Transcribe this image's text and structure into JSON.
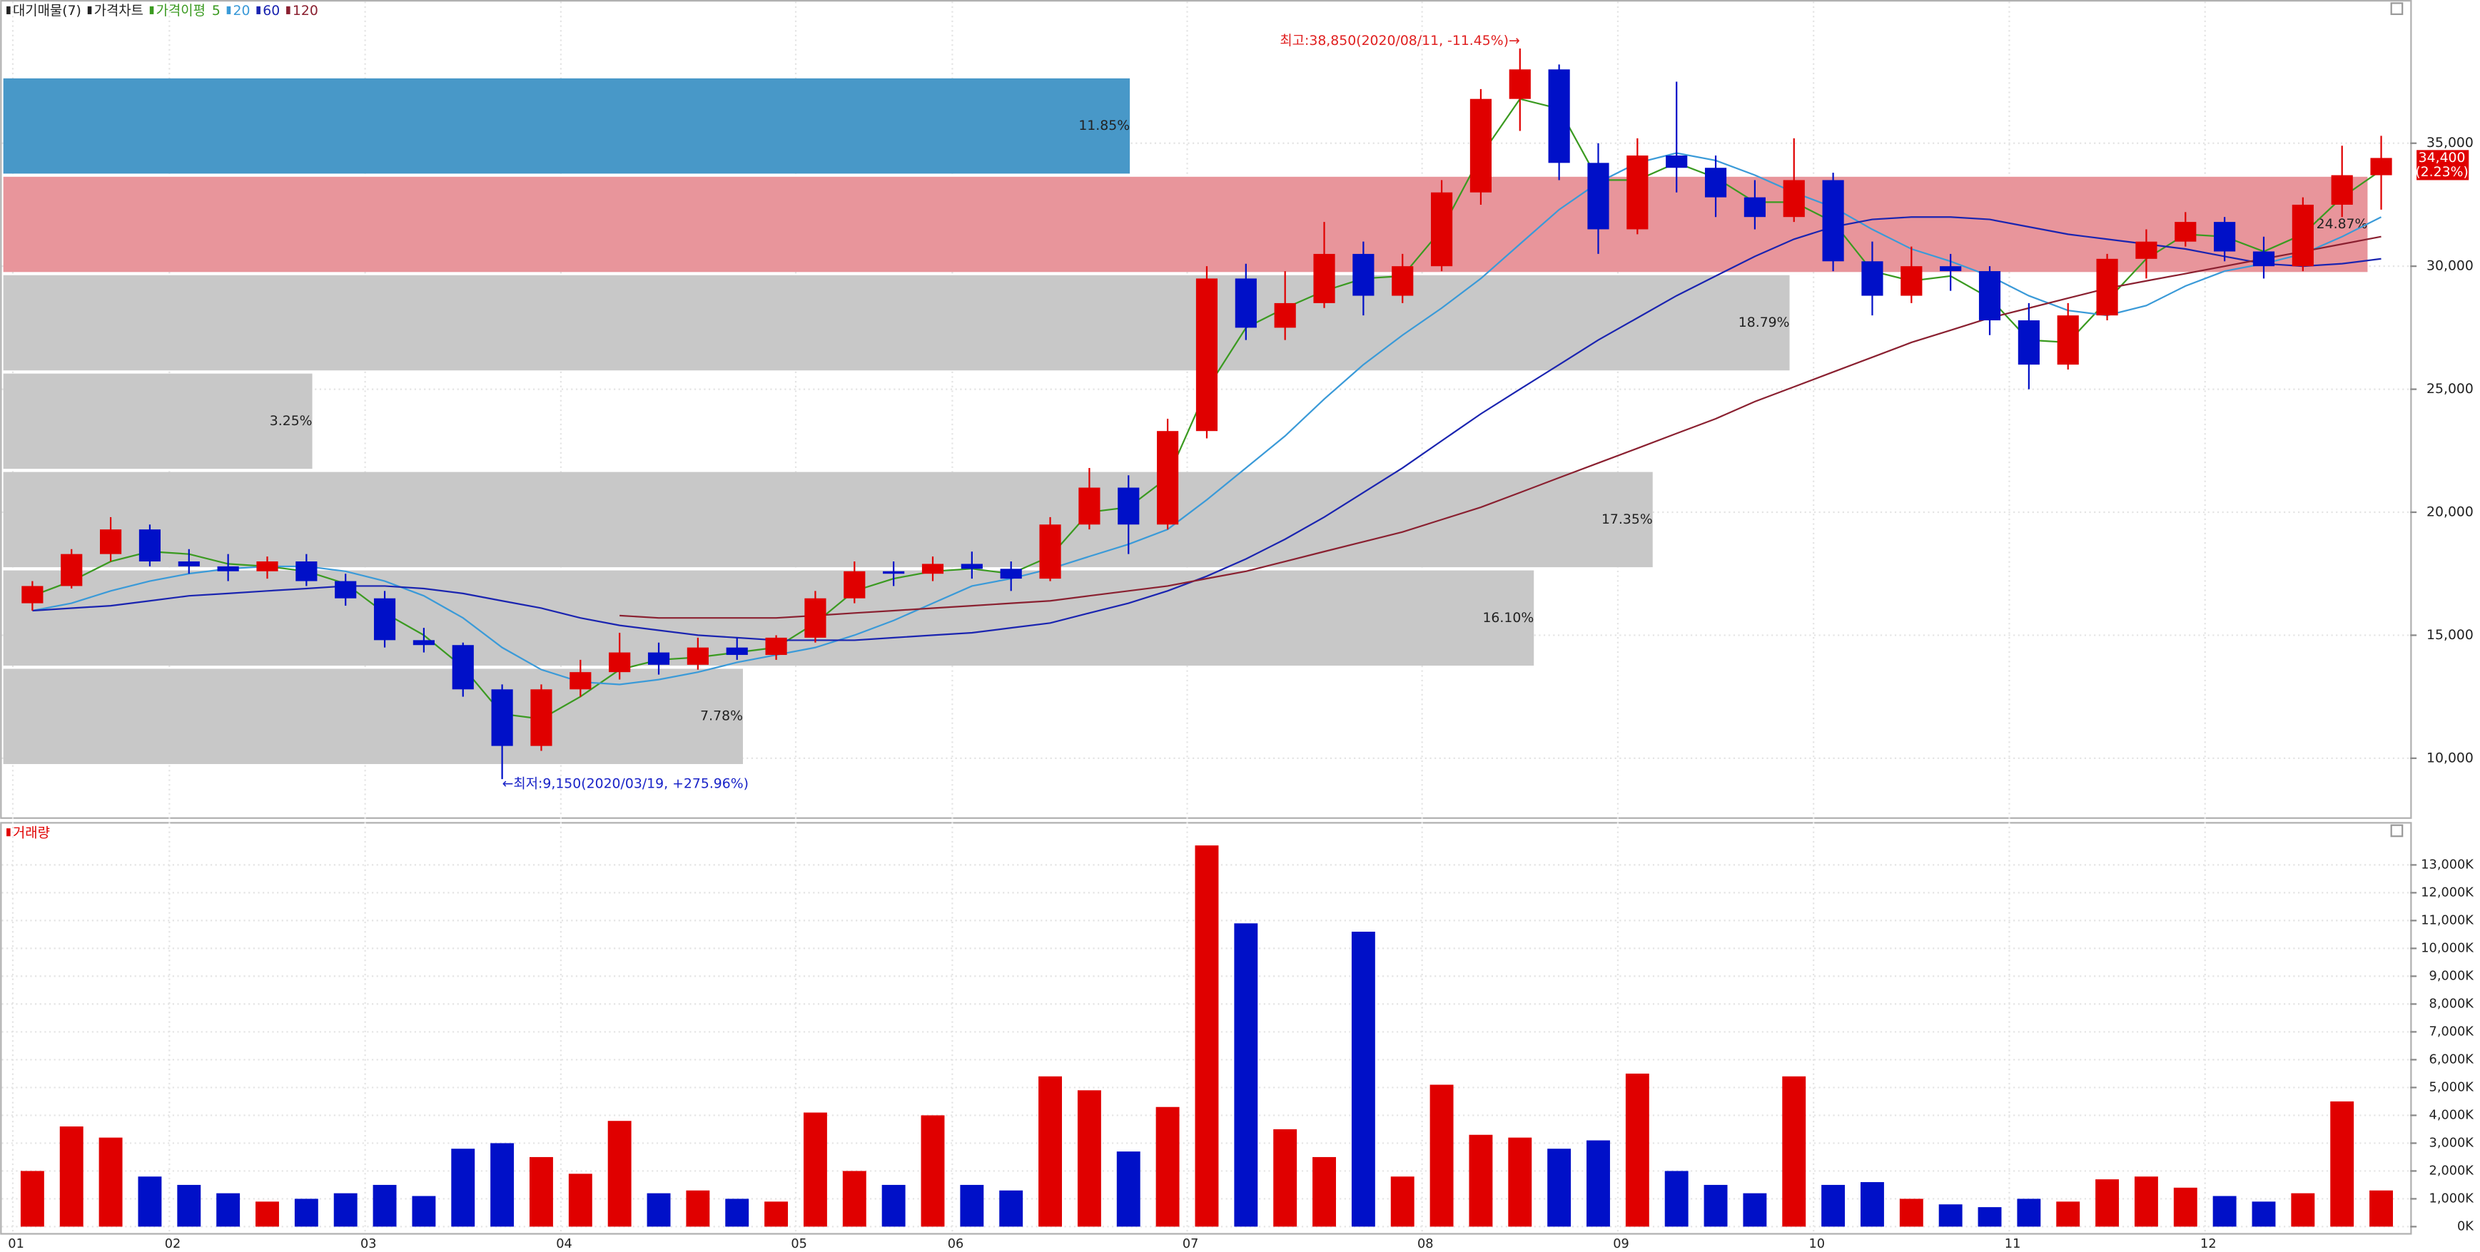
{
  "chart_data": [
    {
      "type": "candlestick",
      "legend_label": "가격차트",
      "ma_label": "가격이평",
      "up_color": "#e00000",
      "down_color": "#0010c8",
      "open": [
        16300,
        17000,
        18300,
        19300,
        18000,
        17800,
        17600,
        18000,
        17200,
        16500,
        14800,
        14600,
        12800,
        10500,
        12800,
        13500,
        14300,
        13800,
        14500,
        14200,
        14900,
        16500,
        17600,
        17500,
        17900,
        17700,
        17300,
        19500,
        21000,
        19500,
        23300,
        29500,
        27500,
        28500,
        30500,
        28800,
        30000,
        33000,
        36800,
        38000,
        34200,
        31500,
        34500,
        34000,
        32800,
        32000,
        33500,
        30200,
        28800,
        30000,
        29800,
        27800,
        26000,
        28000,
        30300,
        31000,
        31800,
        30600,
        30000,
        32500,
        33700
      ],
      "high": [
        17200,
        18500,
        19800,
        19500,
        18500,
        18300,
        18200,
        18300,
        17500,
        16800,
        15300,
        14700,
        13000,
        13000,
        14000,
        15100,
        14700,
        14900,
        14900,
        15000,
        16800,
        18000,
        18000,
        18200,
        18400,
        18000,
        19800,
        21800,
        21500,
        23800,
        30000,
        30100,
        29800,
        31800,
        31000,
        30500,
        33500,
        37200,
        38850,
        38200,
        35000,
        35200,
        37500,
        34500,
        33500,
        35200,
        33800,
        31000,
        30800,
        30500,
        30000,
        28500,
        28500,
        30500,
        31500,
        32200,
        32000,
        31200,
        32800,
        34900,
        35300
      ],
      "low": [
        16000,
        16900,
        18000,
        17800,
        17500,
        17200,
        17300,
        17000,
        16200,
        14500,
        14300,
        12500,
        9150,
        10300,
        12500,
        13200,
        13400,
        13600,
        14000,
        14000,
        14700,
        16300,
        17000,
        17200,
        17300,
        16800,
        17200,
        19300,
        18300,
        19300,
        23000,
        27000,
        27000,
        28300,
        28000,
        28500,
        29800,
        32500,
        35500,
        33500,
        30500,
        31300,
        33000,
        32000,
        31500,
        31800,
        29800,
        28000,
        28500,
        29000,
        27200,
        25000,
        25800,
        27800,
        29500,
        30800,
        30200,
        29500,
        29800,
        32000,
        32300
      ],
      "close": [
        17000,
        18300,
        19300,
        18000,
        17800,
        17600,
        18000,
        17200,
        16500,
        14800,
        14600,
        12800,
        10500,
        12800,
        13500,
        14300,
        13800,
        14500,
        14200,
        14900,
        16500,
        17600,
        17500,
        17900,
        17700,
        17300,
        19500,
        21000,
        19500,
        23300,
        29500,
        27500,
        28500,
        30500,
        28800,
        30000,
        33000,
        36800,
        38000,
        34200,
        31500,
        34500,
        34000,
        32800,
        32000,
        33500,
        30200,
        28800,
        30000,
        29800,
        27800,
        26000,
        28000,
        30300,
        31000,
        31800,
        30600,
        30000,
        32500,
        33700,
        34400
      ],
      "ma": [
        {
          "name": "5",
          "color": "#3a9a20",
          "values": [
            16600,
            17200,
            18000,
            18400,
            18300,
            17900,
            17800,
            17600,
            17100,
            15900,
            15000,
            13700,
            11800,
            11600,
            12500,
            13600,
            14000,
            14100,
            14300,
            14500,
            15500,
            16800,
            17300,
            17600,
            17700,
            17500,
            18200,
            20000,
            20200,
            21400,
            25000,
            27500,
            28300,
            29000,
            29500,
            29600,
            31500,
            34500,
            36800,
            36400,
            33500,
            33500,
            34200,
            33600,
            32600,
            32600,
            31800,
            29800,
            29400,
            29600,
            28700,
            27000,
            26900,
            28600,
            30300,
            31300,
            31200,
            30600,
            31300,
            32800,
            33900
          ]
        },
        {
          "name": "20",
          "color": "#3a9ad8",
          "values": [
            16000,
            16300,
            16800,
            17200,
            17500,
            17700,
            17800,
            17800,
            17600,
            17200,
            16600,
            15700,
            14500,
            13600,
            13100,
            13000,
            13200,
            13500,
            13900,
            14200,
            14500,
            15000,
            15600,
            16300,
            17000,
            17300,
            17700,
            18200,
            18700,
            19300,
            20500,
            21800,
            23100,
            24600,
            26000,
            27200,
            28300,
            29500,
            30900,
            32300,
            33400,
            34200,
            34600,
            34300,
            33700,
            33000,
            32400,
            31500,
            30700,
            30200,
            29600,
            28800,
            28200,
            28000,
            28400,
            29200,
            29800,
            30100,
            30500,
            31200,
            32000
          ]
        },
        {
          "name": "60",
          "color": "#1a24b0",
          "values": [
            16000,
            16100,
            16200,
            16400,
            16600,
            16700,
            16800,
            16900,
            17000,
            17000,
            16900,
            16700,
            16400,
            16100,
            15700,
            15400,
            15200,
            15000,
            14900,
            14800,
            14800,
            14800,
            14900,
            15000,
            15100,
            15300,
            15500,
            15900,
            16300,
            16800,
            17400,
            18100,
            18900,
            19800,
            20800,
            21800,
            22900,
            24000,
            25000,
            26000,
            27000,
            27900,
            28800,
            29600,
            30400,
            31100,
            31600,
            31900,
            32000,
            32000,
            31900,
            31600,
            31300,
            31100,
            30900,
            30700,
            30400,
            30100,
            30000,
            30100,
            30300
          ]
        },
        {
          "name": "120",
          "color": "#8a2030",
          "values": [
            null,
            null,
            null,
            null,
            null,
            null,
            null,
            null,
            null,
            null,
            null,
            null,
            null,
            null,
            null,
            15800,
            15700,
            15700,
            15700,
            15700,
            15800,
            15900,
            16000,
            16100,
            16200,
            16300,
            16400,
            16600,
            16800,
            17000,
            17300,
            17600,
            18000,
            18400,
            18800,
            19200,
            19700,
            20200,
            20800,
            21400,
            22000,
            22600,
            23200,
            23800,
            24500,
            25100,
            25700,
            26300,
            26900,
            27400,
            27900,
            28300,
            28700,
            29100,
            29400,
            29700,
            30000,
            30300,
            30600,
            30900,
            31200
          ]
        }
      ],
      "profile": {
        "name": "대기매물(7)",
        "bins": [
          9700,
          13700,
          17700,
          21700,
          25700,
          29700,
          33700,
          37700
        ],
        "values": [
          7.78,
          16.1,
          17.35,
          3.25,
          18.79,
          24.87,
          11.85
        ],
        "value_labels": [
          "7.78%",
          "16.10%",
          "17.35%",
          "3.25%",
          "18.79%",
          "24.87%",
          "11.85%"
        ],
        "colors": [
          "#c8c8c8",
          "#c8c8c8",
          "#c8c8c8",
          "#c8c8c8",
          "#c8c8c8",
          "#e8959b",
          "#4898c8"
        ]
      },
      "annotations": [
        {
          "text": "최고:38,850(2020/08/11, -11.45%)→",
          "color": "#e02020"
        },
        {
          "text": "←최저:9,150(2020/03/19, +275.96%)",
          "color": "#1a24c8"
        }
      ],
      "last_price": {
        "label": "34,400",
        "change": "(2.23%)",
        "color": "#e00000"
      },
      "ylim": [
        7600,
        40500
      ],
      "yticks": [
        {
          "value": 10000,
          "label": "10,000"
        },
        {
          "value": 15000,
          "label": "15,000"
        },
        {
          "value": 20000,
          "label": "20,000"
        },
        {
          "value": 25000,
          "label": "25,000"
        },
        {
          "value": 30000,
          "label": "30,000"
        },
        {
          "value": 35000,
          "label": "35,000"
        }
      ],
      "grid": true
    },
    {
      "type": "bar",
      "categories": [
        "01",
        null,
        null,
        null,
        "02",
        null,
        null,
        null,
        null,
        "03",
        null,
        null,
        null,
        null,
        "04",
        null,
        null,
        null,
        null,
        null,
        "05",
        null,
        null,
        null,
        "06",
        null,
        null,
        null,
        null,
        null,
        "07",
        null,
        null,
        null,
        null,
        null,
        "08",
        null,
        null,
        null,
        null,
        "09",
        null,
        null,
        null,
        null,
        "10",
        null,
        null,
        null,
        null,
        "11",
        null,
        null,
        null,
        null,
        "12",
        null,
        null,
        null,
        null
      ],
      "series": [
        {
          "name": "거래량",
          "color": "#e00000",
          "values": [
            2000,
            3600,
            3200,
            1800,
            1500,
            1200,
            900,
            1000,
            1200,
            1500,
            1100,
            2800,
            3000,
            2500,
            1900,
            3800,
            1200,
            1300,
            1000,
            900,
            4100,
            2000,
            1500,
            4000,
            1500,
            1300,
            5400,
            4900,
            2700,
            4300,
            13700,
            10900,
            3500,
            2500,
            10600,
            1800,
            5100,
            3300,
            3200,
            2800,
            3100,
            5500,
            2000,
            1500,
            1200,
            5400,
            1500,
            1600,
            1000,
            800,
            700,
            1000,
            900,
            1700,
            1800,
            1400,
            1100,
            900,
            1200,
            4500,
            1300
          ]
        }
      ],
      "ylim": [
        -230,
        13860
      ],
      "yticks": [
        {
          "value": 0,
          "label": "0K"
        },
        {
          "value": 1000,
          "label": "1,000K"
        },
        {
          "value": 2000,
          "label": "2,000K"
        },
        {
          "value": 3000,
          "label": "3,000K"
        },
        {
          "value": 4000,
          "label": "4,000K"
        },
        {
          "value": 5000,
          "label": "5,000K"
        },
        {
          "value": 6000,
          "label": "6,000K"
        },
        {
          "value": 7000,
          "label": "7,000K"
        },
        {
          "value": 8000,
          "label": "8,000K"
        },
        {
          "value": 9000,
          "label": "9,000K"
        },
        {
          "value": 10000,
          "label": "10,000K"
        },
        {
          "value": 11000,
          "label": "11,000K"
        },
        {
          "value": 12000,
          "label": "12,000K"
        },
        {
          "value": 13000,
          "label": "13,000K"
        }
      ],
      "grid": true
    }
  ]
}
